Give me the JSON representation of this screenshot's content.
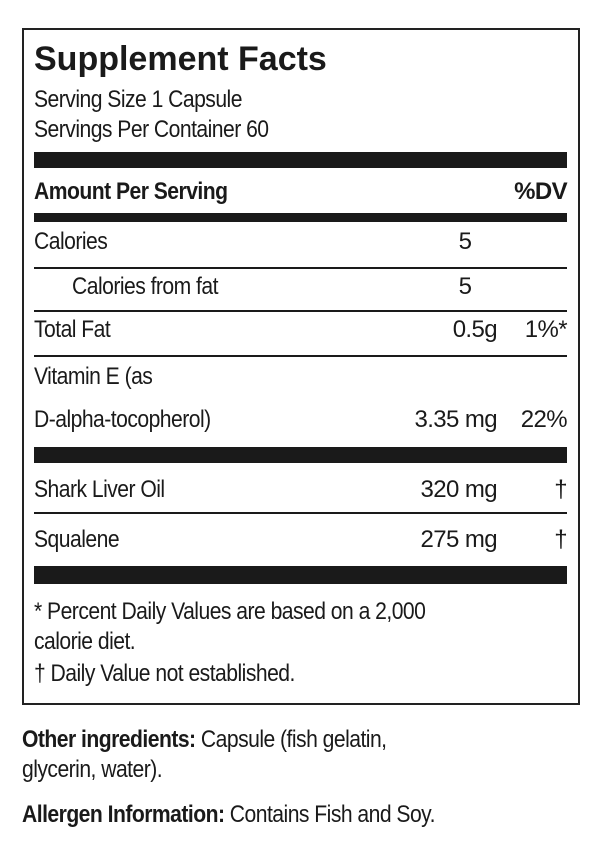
{
  "title": "Supplement Facts",
  "serving_size": "Serving Size 1 Capsule",
  "servings_per_container": "Servings Per Container 60",
  "header": {
    "amount": "Amount Per Serving",
    "dv": "%DV"
  },
  "rows": [
    {
      "name": "Calories",
      "amount": "5",
      "dv": ""
    },
    {
      "name": "Calories from fat",
      "amount": "5",
      "dv": ""
    },
    {
      "name": "Total Fat",
      "amount": "0.5g",
      "dv": "1%*"
    },
    {
      "name_line1": "Vitamin E (as",
      "name_line2": "D-alpha-tocopherol)",
      "amount": "3.35 mg",
      "dv": "22%"
    },
    {
      "name": "Shark Liver Oil",
      "amount": "320 mg",
      "dv": "†"
    },
    {
      "name": "Squalene",
      "amount": "275 mg",
      "dv": "†"
    }
  ],
  "footnotes": [
    "* Percent Daily Values are based on a 2,000",
    "calorie diet.",
    "† Daily Value not established."
  ],
  "other_ingredients": {
    "label": "Other ingredients:",
    "text_line1": " Capsule (fish gelatin,",
    "text_line2": "glycerin, water)."
  },
  "allergen": {
    "label": "Allergen Information:",
    "text": " Contains Fish and Soy."
  }
}
